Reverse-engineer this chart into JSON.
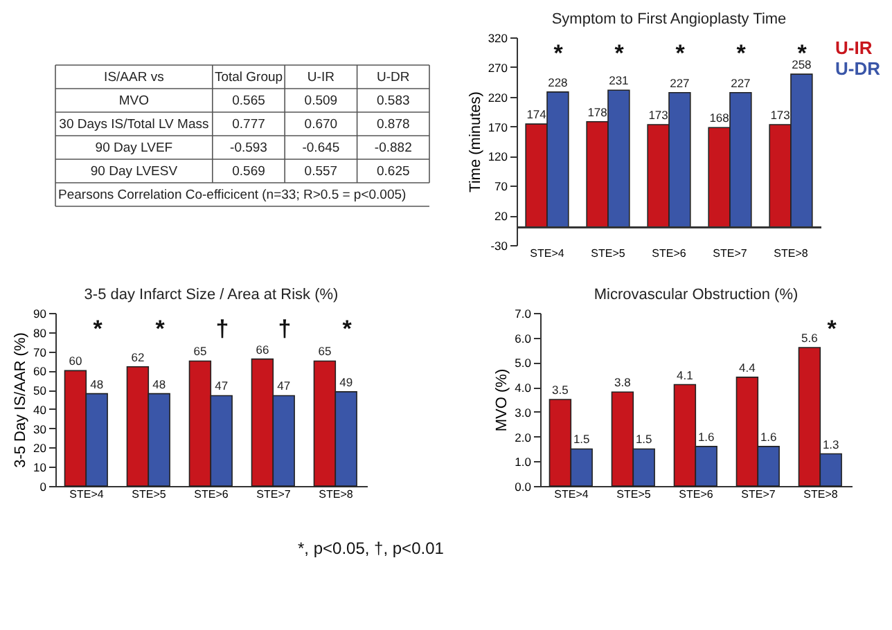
{
  "chart_data": [
    {
      "type": "other",
      "categories": [
        "IS/AAR vs",
        "Total Group",
        "U-IR",
        "U-DR"
      ],
      "y_categories": [
        "MVO",
        "30 Days IS/Total LV Mass",
        "90 Day LVEF",
        "90 Day LVESV"
      ],
      "cell_labels": [
        [
          "0.565",
          "0.509",
          "0.583"
        ],
        [
          "0.777",
          "0.670",
          "0.878"
        ],
        [
          "-0.593",
          "-0.645",
          "-0.882"
        ],
        [
          "0.569",
          "0.557",
          "0.625"
        ]
      ],
      "annotations": [
        "Pearsons Correlation Co-efficicent (n=33; R>0.5 = p<0.005)"
      ]
    },
    {
      "type": "bar",
      "title": "Symptom to First Angioplasty Time",
      "ylabel": "Time (minutes)",
      "categories": [
        "STE>4",
        "STE>5",
        "STE>6",
        "STE>7",
        "STE>8"
      ],
      "series": [
        {
          "name": "U-IR",
          "color": "#c8161d",
          "values": [
            174,
            178,
            173,
            168,
            173
          ]
        },
        {
          "name": "U-DR",
          "color": "#3a56a8",
          "values": [
            228,
            231,
            227,
            227,
            258
          ]
        }
      ],
      "ylim": [
        -30,
        320
      ],
      "yticks": [
        -30,
        20,
        70,
        120,
        170,
        220,
        270,
        320
      ],
      "data_labels": true,
      "legend": "top right",
      "grid": false,
      "annotations": [
        "*",
        "*",
        "*",
        "*",
        "*"
      ]
    },
    {
      "type": "bar",
      "title": "3-5 day Infarct Size / Area at Risk (%)",
      "ylabel": "3-5 Day IS/AAR (%)",
      "categories": [
        "STE>4",
        "STE>5",
        "STE>6",
        "STE>7",
        "STE>8"
      ],
      "series": [
        {
          "color": "#c8161d",
          "values": [
            60,
            62,
            65,
            66,
            65
          ]
        },
        {
          "color": "#3a56a8",
          "values": [
            48,
            48,
            47,
            47,
            49
          ]
        }
      ],
      "ylim": [
        0,
        90
      ],
      "yticks": [
        0,
        10,
        20,
        30,
        40,
        50,
        60,
        70,
        80,
        90
      ],
      "data_labels": true,
      "grid": false,
      "annotations": [
        "*",
        "*",
        "†",
        "†",
        "*",
        "*, p<0.05, †, p<0.01"
      ]
    },
    {
      "type": "bar",
      "title": "Microvascular Obstruction (%)",
      "ylabel": "MVO (%)",
      "categories": [
        "STE>4",
        "STE>5",
        "STE>6",
        "STE>7",
        "STE>8"
      ],
      "series": [
        {
          "color": "#c8161d",
          "values": [
            3.5,
            3.8,
            4.1,
            4.4,
            5.6
          ]
        },
        {
          "color": "#3a56a8",
          "values": [
            1.5,
            1.5,
            1.6,
            1.6,
            1.3
          ]
        }
      ],
      "ylim": [
        0,
        7
      ],
      "yticks": [
        {
          "value": 0,
          "label": "0.0"
        },
        {
          "value": 1,
          "label": "1.0"
        },
        {
          "value": 2,
          "label": "2.0"
        },
        {
          "value": 3,
          "label": "3.0"
        },
        {
          "value": 4,
          "label": "4.0"
        },
        {
          "value": 5,
          "label": "5.0"
        },
        {
          "value": 6,
          "label": "6.0"
        },
        {
          "value": 7,
          "label": "7.0"
        }
      ],
      "data_labels": true,
      "grid": false,
      "annotations": [
        "*"
      ]
    }
  ]
}
